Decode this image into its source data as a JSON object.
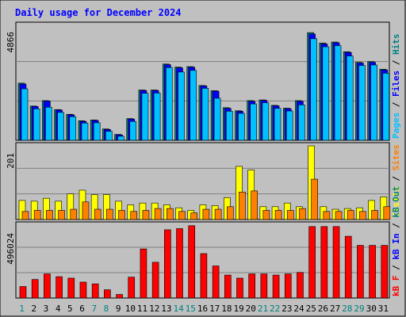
{
  "chart_data": [
    {
      "type": "bar",
      "title": "Daily usage for December 2024",
      "panel": "top",
      "ymax_label": "4866",
      "right_label": {
        "parts": [
          {
            "text": "Pages",
            "color": "#00c0ff"
          },
          {
            "text": " / ",
            "color": "#000000"
          },
          {
            "text": "Files",
            "color": "#0000ff"
          },
          {
            "text": " / ",
            "color": "#000000"
          },
          {
            "text": "Hits",
            "color": "#008080"
          }
        ]
      },
      "ylim": [
        0,
        4866
      ],
      "categories": [
        "1",
        "2",
        "3",
        "4",
        "5",
        "6",
        "7",
        "8",
        "9",
        "10",
        "11",
        "12",
        "13",
        "14",
        "15",
        "16",
        "17",
        "18",
        "19",
        "20",
        "21",
        "22",
        "23",
        "24",
        "25",
        "26",
        "27",
        "28",
        "29",
        "30",
        "31"
      ],
      "series": [
        {
          "name": "Hits",
          "color": "#008080",
          "values": [
            2420,
            1450,
            1680,
            1300,
            1100,
            830,
            860,
            480,
            250,
            920,
            2130,
            2130,
            3230,
            3100,
            3120,
            2320,
            2100,
            1380,
            1250,
            1680,
            1710,
            1480,
            1360,
            1680,
            4560,
            4120,
            4160,
            3750,
            3300,
            3330,
            3010
          ]
        },
        {
          "name": "Files",
          "color": "#0000ff",
          "values": [
            2380,
            1430,
            1660,
            1280,
            1080,
            800,
            840,
            460,
            230,
            900,
            2110,
            2110,
            3200,
            3070,
            3090,
            2300,
            2080,
            1350,
            1230,
            1650,
            1690,
            1460,
            1340,
            1650,
            4500,
            4080,
            4130,
            3720,
            3270,
            3300,
            2980
          ]
        },
        {
          "name": "Pages",
          "color": "#00c0ff",
          "values": [
            2180,
            1330,
            1400,
            1180,
            1000,
            730,
            740,
            380,
            170,
            800,
            1990,
            2000,
            3080,
            2890,
            2960,
            2200,
            1780,
            1230,
            1140,
            1540,
            1590,
            1350,
            1240,
            1500,
            4300,
            3960,
            4010,
            3570,
            3170,
            3190,
            2840
          ]
        }
      ]
    },
    {
      "type": "bar",
      "panel": "middle",
      "ymax_label": "201",
      "right_label": {
        "parts": [
          {
            "text": "Visits",
            "color": "#ffff00"
          },
          {
            "text": " / ",
            "color": "#000000"
          },
          {
            "text": "Sites",
            "color": "#ff8000"
          }
        ]
      },
      "ylim": [
        0,
        201
      ],
      "categories": [
        "1",
        "2",
        "3",
        "4",
        "5",
        "6",
        "7",
        "8",
        "9",
        "10",
        "11",
        "12",
        "13",
        "14",
        "15",
        "16",
        "17",
        "18",
        "19",
        "20",
        "21",
        "22",
        "23",
        "24",
        "25",
        "26",
        "27",
        "28",
        "29",
        "30",
        "31"
      ],
      "series": [
        {
          "name": "Visits",
          "color": "#ffff00",
          "values": [
            52,
            50,
            58,
            50,
            70,
            80,
            68,
            68,
            50,
            40,
            45,
            45,
            40,
            32,
            25,
            40,
            38,
            60,
            145,
            135,
            35,
            35,
            45,
            35,
            201,
            35,
            28,
            30,
            32,
            52,
            62
          ]
        },
        {
          "name": "Sites",
          "color": "#ff8000",
          "values": [
            22,
            25,
            25,
            25,
            28,
            48,
            28,
            28,
            25,
            22,
            25,
            30,
            30,
            22,
            18,
            28,
            28,
            35,
            75,
            78,
            25,
            25,
            25,
            30,
            110,
            22,
            22,
            25,
            22,
            25,
            35
          ]
        }
      ]
    },
    {
      "type": "bar",
      "panel": "bottom",
      "ymax_label": "496024",
      "right_label": {
        "parts": [
          {
            "text": "kB F",
            "color": "#ff0000"
          },
          {
            "text": " / ",
            "color": "#000000"
          },
          {
            "text": "kB In",
            "color": "#0000ff"
          },
          {
            "text": " / ",
            "color": "#000000"
          },
          {
            "text": "kB Out",
            "color": "#008080"
          }
        ]
      },
      "ylim": [
        0,
        496024
      ],
      "categories": [
        "1",
        "2",
        "3",
        "4",
        "5",
        "6",
        "7",
        "8",
        "9",
        "10",
        "11",
        "12",
        "13",
        "14",
        "15",
        "16",
        "17",
        "18",
        "19",
        "20",
        "21",
        "22",
        "23",
        "24",
        "25",
        "26",
        "27",
        "28",
        "29",
        "30",
        "31"
      ],
      "series": [
        {
          "name": "kB F",
          "color": "#ff0000",
          "values": [
            78000,
            126000,
            164000,
            145000,
            135000,
            108000,
            96000,
            56000,
            24000,
            142000,
            334000,
            243000,
            464000,
            472000,
            492000,
            302000,
            218000,
            156000,
            135000,
            164000,
            164000,
            156000,
            164000,
            174000,
            486000,
            486000,
            486000,
            420000,
            358000,
            358000,
            358000
          ]
        }
      ],
      "x_tick_colors": [
        "#008080",
        "#000000",
        "#000000",
        "#000000",
        "#000000",
        "#000000",
        "#008080",
        "#008080",
        "#000000",
        "#000000",
        "#000000",
        "#000000",
        "#000000",
        "#008080",
        "#008080",
        "#000000",
        "#000000",
        "#000000",
        "#000000",
        "#000000",
        "#008080",
        "#008080",
        "#000000",
        "#000000",
        "#000000",
        "#000000",
        "#000000",
        "#008080",
        "#008080",
        "#000000",
        "#000000"
      ]
    }
  ]
}
